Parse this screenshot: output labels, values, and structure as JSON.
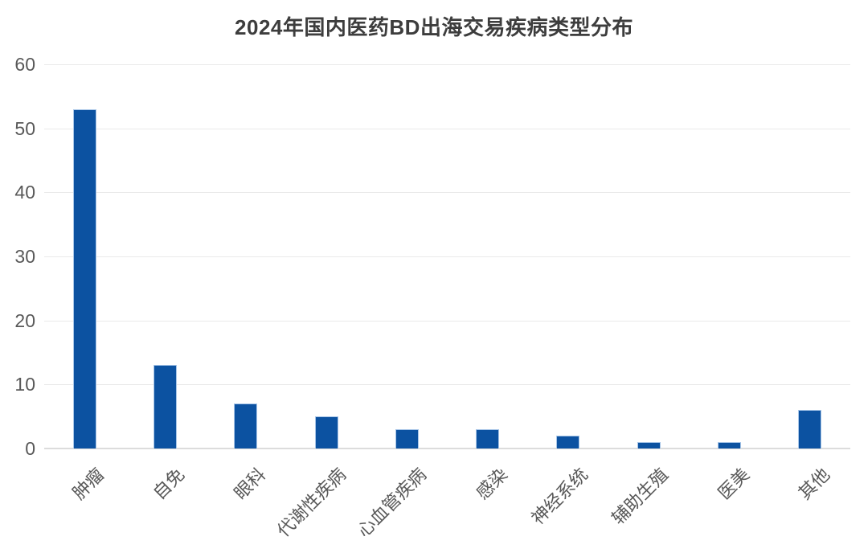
{
  "chart_data": {
    "type": "bar",
    "title": "2024年国内医药BD出海交易疾病类型分布",
    "categories": [
      "肿瘤",
      "自免",
      "眼科",
      "代谢性疾病",
      "心血管疾病",
      "感染",
      "神经系统",
      "辅助生殖",
      "医美",
      "其他"
    ],
    "values": [
      53,
      13,
      7,
      5,
      3,
      3,
      2,
      1,
      1,
      6
    ],
    "xlabel": "",
    "ylabel": "",
    "ylim": [
      0,
      60
    ],
    "yticks": [
      0,
      10,
      20,
      30,
      40,
      50,
      60
    ],
    "grid": "horizontal",
    "legend_position": "none",
    "x_label_rotation_deg": 45,
    "colors": {
      "bar_fill": "#0c52a1",
      "bar_border": "#a8c6e8",
      "gridline": "#eaeaea",
      "axis_line": "#dcdcdc",
      "title_text": "#3d3d3d",
      "tick_text": "#595959",
      "background": "#ffffff"
    }
  }
}
